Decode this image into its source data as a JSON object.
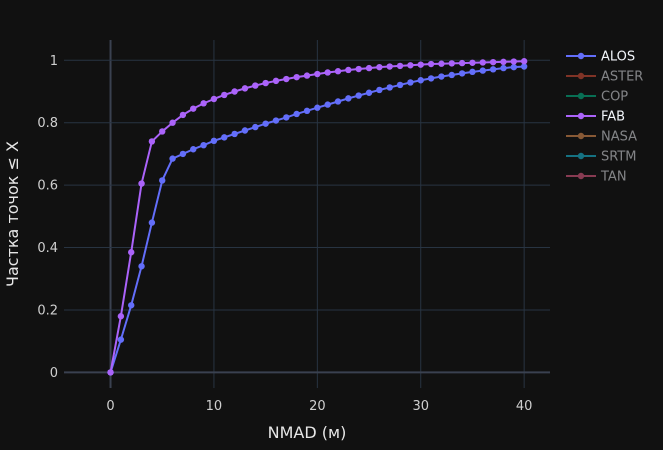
{
  "chart_data": {
    "type": "line",
    "xlabel": "NMAD (м)",
    "ylabel": "Частка точок ≤ X",
    "xlim": [
      -4.5,
      42.5
    ],
    "ylim": [
      -0.05,
      1.065
    ],
    "x_ticks": [
      0,
      10,
      20,
      30,
      40
    ],
    "x_tick_labels": [
      "0",
      "10",
      "20",
      "30",
      "40"
    ],
    "y_ticks": [
      0,
      0.2,
      0.4,
      0.6,
      0.8,
      1
    ],
    "y_tick_labels": [
      "0",
      "0.2",
      "0.4",
      "0.6",
      "0.8",
      "1"
    ],
    "grid": true,
    "legend_position": "right",
    "series": [
      {
        "name": "ALOS",
        "color": "#636efa",
        "visible": true,
        "x": [
          0,
          1,
          2,
          3,
          4,
          5,
          6,
          7,
          8,
          9,
          10,
          11,
          12,
          13,
          14,
          15,
          16,
          17,
          18,
          19,
          20,
          21,
          22,
          23,
          24,
          25,
          26,
          27,
          28,
          29,
          30,
          31,
          32,
          33,
          34,
          35,
          36,
          37,
          38,
          39,
          40
        ],
        "y": [
          0.0,
          0.105,
          0.215,
          0.34,
          0.48,
          0.615,
          0.685,
          0.7,
          0.715,
          0.728,
          0.742,
          0.753,
          0.764,
          0.775,
          0.786,
          0.797,
          0.807,
          0.817,
          0.828,
          0.838,
          0.848,
          0.858,
          0.868,
          0.878,
          0.887,
          0.896,
          0.905,
          0.913,
          0.921,
          0.929,
          0.936,
          0.942,
          0.948,
          0.953,
          0.958,
          0.963,
          0.967,
          0.971,
          0.975,
          0.978,
          0.98
        ]
      },
      {
        "name": "ASTER",
        "color": "#EF553B",
        "visible": false,
        "x": [],
        "y": []
      },
      {
        "name": "COP",
        "color": "#00cc96",
        "visible": false,
        "x": [],
        "y": []
      },
      {
        "name": "FAB",
        "color": "#ab63fa",
        "visible": true,
        "x": [
          0,
          1,
          2,
          3,
          4,
          5,
          6,
          7,
          8,
          9,
          10,
          11,
          12,
          13,
          14,
          15,
          16,
          17,
          18,
          19,
          20,
          21,
          22,
          23,
          24,
          25,
          26,
          27,
          28,
          29,
          30,
          31,
          32,
          33,
          34,
          35,
          36,
          37,
          38,
          39,
          40
        ],
        "y": [
          0.0,
          0.18,
          0.385,
          0.605,
          0.74,
          0.772,
          0.8,
          0.825,
          0.845,
          0.862,
          0.876,
          0.889,
          0.9,
          0.91,
          0.919,
          0.927,
          0.934,
          0.94,
          0.946,
          0.951,
          0.956,
          0.961,
          0.965,
          0.969,
          0.972,
          0.975,
          0.978,
          0.98,
          0.982,
          0.984,
          0.986,
          0.988,
          0.989,
          0.99,
          0.991,
          0.992,
          0.993,
          0.994,
          0.995,
          0.996,
          0.997
        ]
      },
      {
        "name": "NASA",
        "color": "#FFA15A",
        "visible": false,
        "x": [],
        "y": []
      },
      {
        "name": "SRTM",
        "color": "#19d3f3",
        "visible": false,
        "x": [],
        "y": []
      },
      {
        "name": "TAN",
        "color": "#FF6692",
        "visible": false,
        "x": [],
        "y": []
      }
    ]
  }
}
